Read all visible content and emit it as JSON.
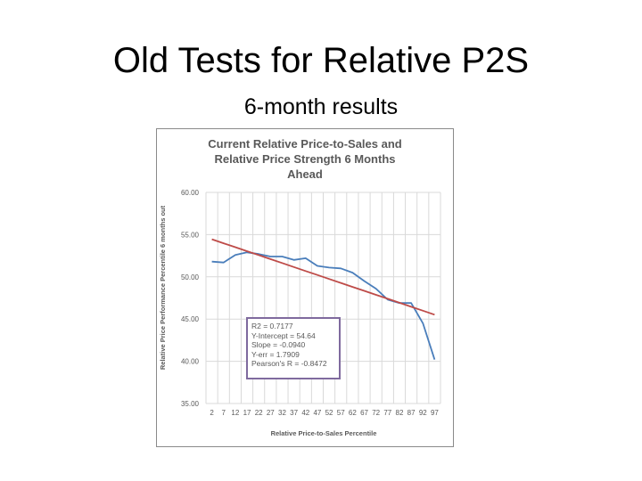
{
  "slide": {
    "title": "Old Tests for Relative P2S",
    "subtitle": "6-month results"
  },
  "chart_data": {
    "type": "line",
    "title_lines": [
      "Current Relative Price-to-Sales and",
      "Relative Price Strength 6 Months",
      "Ahead"
    ],
    "xlabel": "Relative Price-to-Sales Percentile",
    "ylabel": "Relative Price Performance Percentile 6 months out",
    "x": [
      2,
      7,
      12,
      17,
      22,
      27,
      32,
      37,
      42,
      47,
      52,
      57,
      62,
      67,
      72,
      77,
      82,
      87,
      92,
      97
    ],
    "ylim": [
      35,
      60
    ],
    "yticks": [
      "35.00",
      "40.00",
      "45.00",
      "50.00",
      "55.00",
      "60.00"
    ],
    "grid": true,
    "legend": "none",
    "series": [
      {
        "values": [
          51.8,
          51.7,
          52.6,
          52.9,
          52.7,
          52.4,
          52.4,
          52.0,
          52.2,
          51.3,
          51.1,
          51.0,
          50.5,
          49.5,
          48.6,
          47.3,
          46.9,
          46.9,
          44.5,
          40.2
        ],
        "color": "#4a7ebb"
      },
      {
        "values": [
          54.45,
          53.98,
          53.51,
          53.04,
          52.57,
          52.1,
          51.63,
          51.16,
          50.69,
          50.22,
          49.75,
          49.28,
          48.81,
          48.34,
          47.87,
          47.4,
          46.93,
          46.46,
          45.99,
          45.52
        ],
        "color": "#be4b48"
      }
    ],
    "annotation_lines": [
      "R2 = 0.7177",
      "Y-Intercept = 54.64",
      "Slope = -0.0940",
      "Y-err = 1.7909",
      "Pearson's R = -0.8472"
    ]
  }
}
